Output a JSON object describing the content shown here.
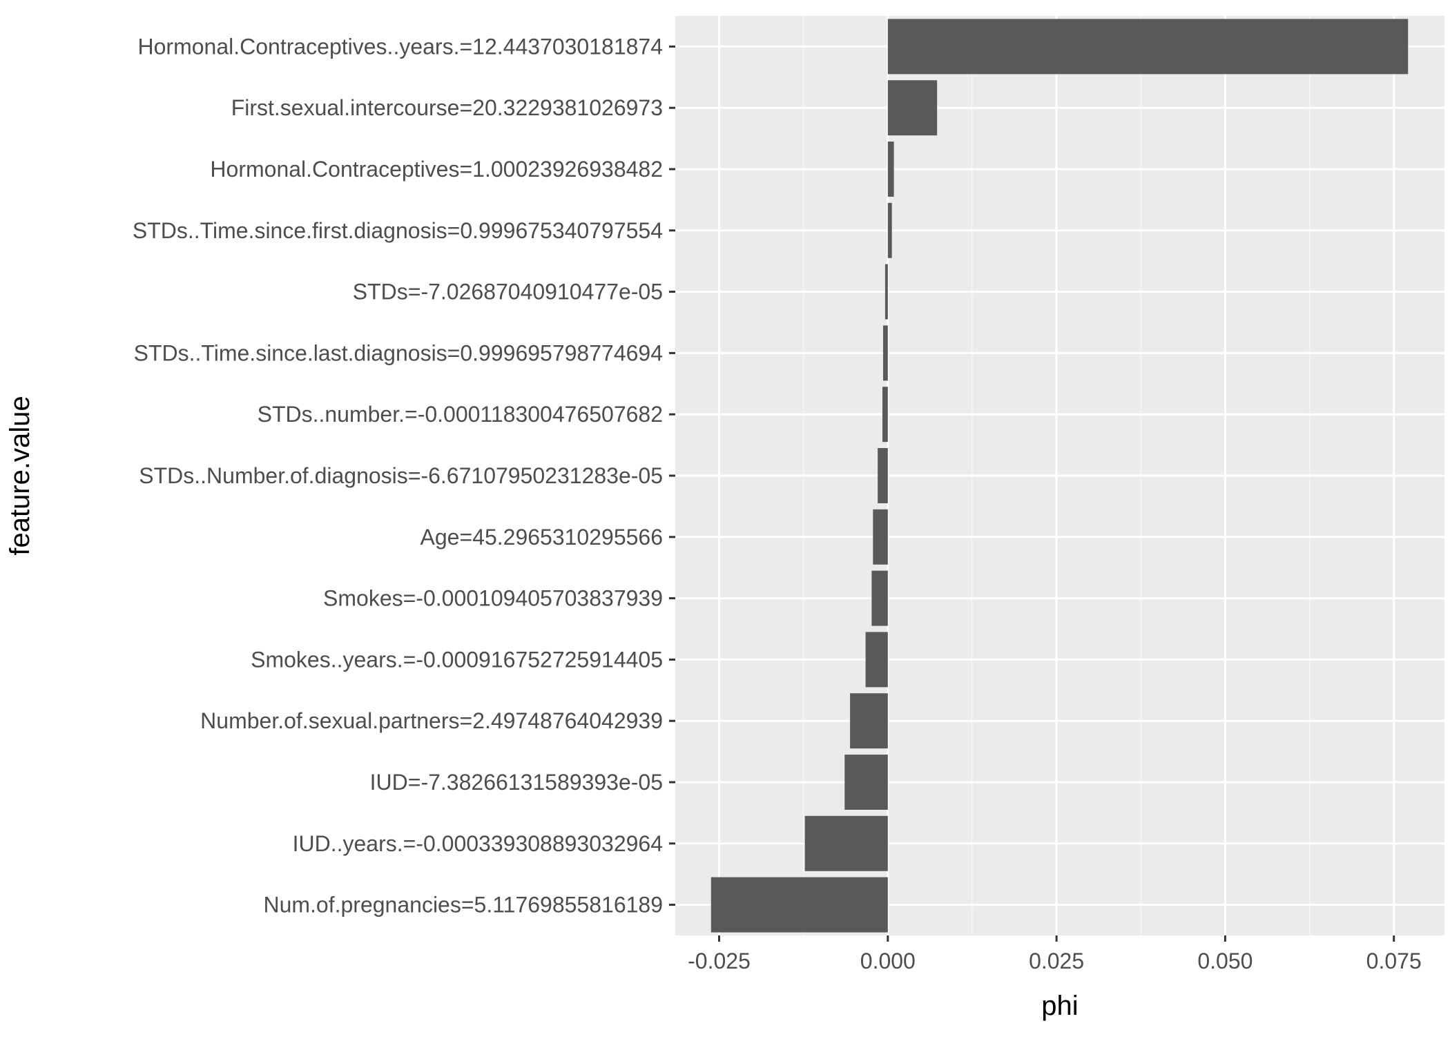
{
  "chart_data": {
    "type": "bar",
    "orientation": "horizontal",
    "title": "",
    "xlabel": "phi",
    "ylabel": "feature.value",
    "xlim": [
      -0.0315,
      0.0825
    ],
    "xticks": [
      -0.025,
      0.0,
      0.025,
      0.05,
      0.075
    ],
    "xtick_labels": [
      "-0.025",
      "0.000",
      "0.025",
      "0.050",
      "0.075"
    ],
    "grid": true,
    "categories": [
      "Hormonal.Contraceptives..years.=12.4437030181874",
      "First.sexual.intercourse=20.3229381026973",
      "Hormonal.Contraceptives=1.00023926938482",
      "STDs..Time.since.first.diagnosis=0.999675340797554",
      "STDs=-7.02687040910477e-05",
      "STDs..Time.since.last.diagnosis=0.999695798774694",
      "STDs..number.=-0.000118300476507682",
      "STDs..Number.of.diagnosis=-6.67107950231283e-05",
      "Age=45.2965310295566",
      "Smokes=-0.000109405703837939",
      "Smokes..years.=-0.000916752725914405",
      "Number.of.sexual.partners=2.49748764042939",
      "IUD=-7.38266131589393e-05",
      "IUD..years.=-0.000339308893032964",
      "Num.of.pregnancies=5.11769855816189"
    ],
    "values": [
      0.0771,
      0.0073,
      0.0009,
      0.0006,
      -0.0004,
      -0.0007,
      -0.0008,
      -0.0015,
      -0.0022,
      -0.0024,
      -0.0033,
      -0.0056,
      -0.0064,
      -0.0123,
      -0.0262
    ],
    "colors": {
      "bar": "#595959",
      "panel": "#ebebeb",
      "grid_major": "#ffffff",
      "grid_minor": "#f5f5f5",
      "tick": "#333333",
      "text": "#4d4d4d",
      "title": "#000000"
    }
  }
}
